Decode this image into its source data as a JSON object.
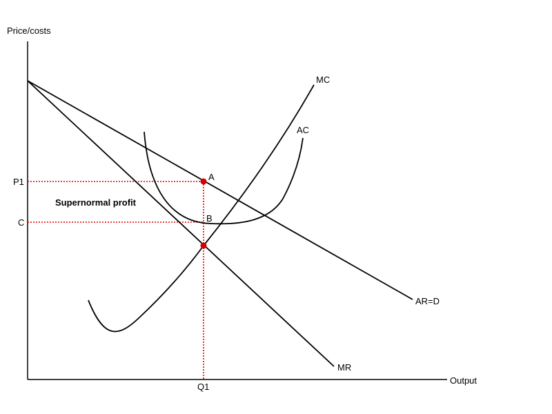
{
  "axes": {
    "y_label": "Price/costs",
    "x_label": "Output"
  },
  "ticks": {
    "p1": "P1",
    "c": "C",
    "q1": "Q1"
  },
  "curves": {
    "mc": "MC",
    "ac": "AC",
    "ar": "AR=D",
    "mr": "MR"
  },
  "points": {
    "a": "A",
    "b": "B"
  },
  "annotation": "Supernormal profit",
  "colors": {
    "lines": "#000000",
    "guides": "#e00000",
    "points": "#d40000"
  }
}
